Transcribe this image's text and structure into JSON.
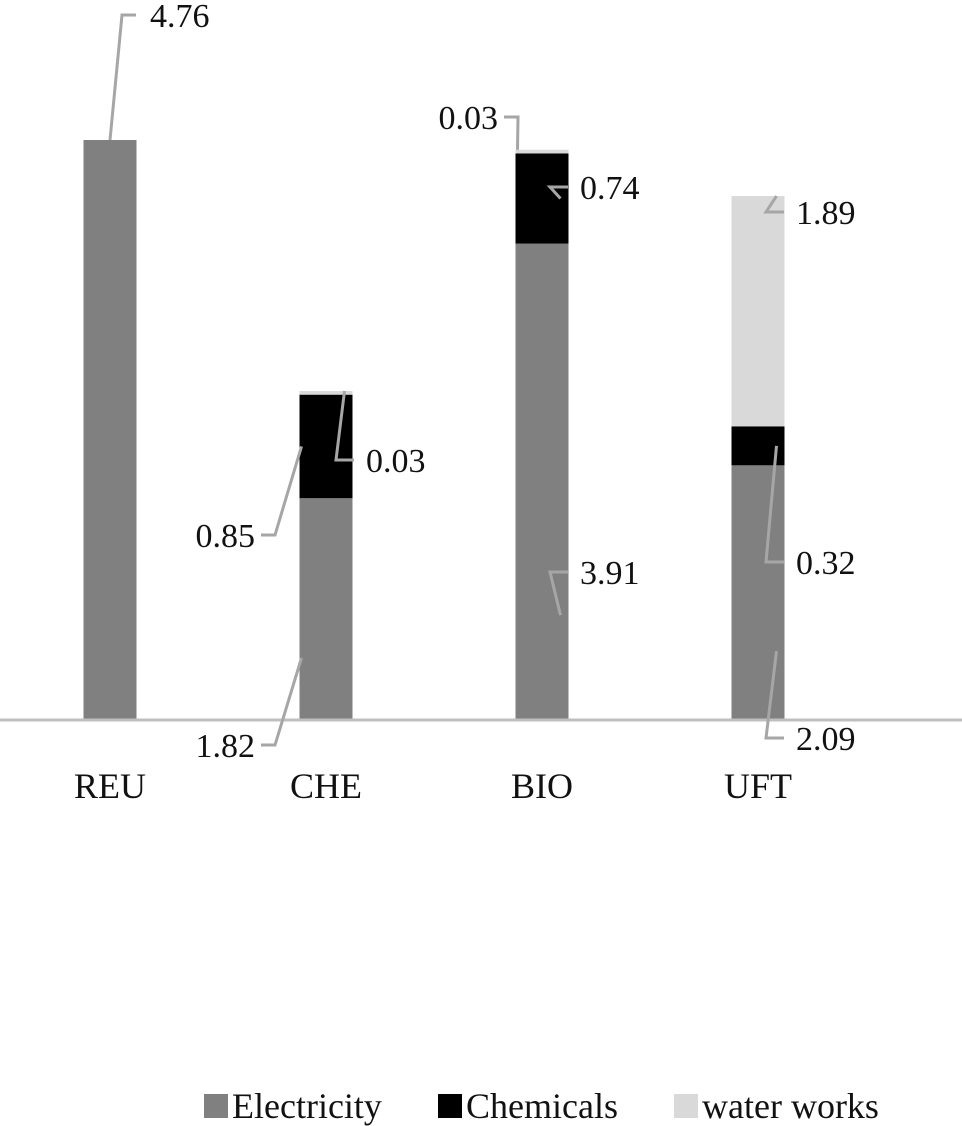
{
  "chart_data": {
    "type": "bar",
    "stacked": true,
    "categories": [
      "REU",
      "CHE",
      "BIO",
      "UFT"
    ],
    "series": [
      {
        "name": "Electricity",
        "color": "#808080",
        "values": [
          4.76,
          1.82,
          3.91,
          2.09
        ]
      },
      {
        "name": "Chemicals",
        "color": "#000000",
        "values": [
          0,
          0.85,
          0.74,
          0.32
        ]
      },
      {
        "name": "water works",
        "color": "#d9d9d9",
        "values": [
          0,
          0.03,
          0.03,
          1.89
        ]
      }
    ],
    "data_labels": [
      {
        "category": "REU",
        "series": "Electricity",
        "text": "4.76"
      },
      {
        "category": "CHE",
        "series": "Electricity",
        "text": "1.82"
      },
      {
        "category": "CHE",
        "series": "Chemicals",
        "text": "0.85"
      },
      {
        "category": "CHE",
        "series": "water works",
        "text": "0.03"
      },
      {
        "category": "BIO",
        "series": "Electricity",
        "text": "3.91"
      },
      {
        "category": "BIO",
        "series": "Chemicals",
        "text": "0.74"
      },
      {
        "category": "BIO",
        "series": "water works",
        "text": "0.03"
      },
      {
        "category": "UFT",
        "series": "Electricity",
        "text": "2.09"
      },
      {
        "category": "UFT",
        "series": "Chemicals",
        "text": "0.32"
      },
      {
        "category": "UFT",
        "series": "water works",
        "text": "1.89"
      }
    ],
    "legend_position": "bottom",
    "gridlines": false,
    "ylim": [
      0,
      4.76
    ]
  }
}
